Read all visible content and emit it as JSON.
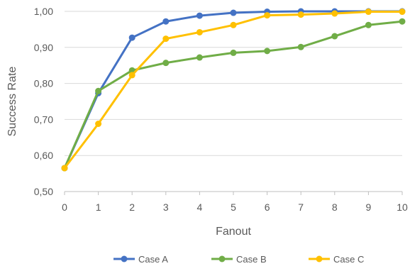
{
  "chart_data": {
    "type": "line",
    "title": "",
    "xlabel": "Fanout",
    "ylabel": "Success Rate",
    "x": [
      0,
      1,
      2,
      3,
      4,
      5,
      6,
      7,
      8,
      9,
      10
    ],
    "xlim": [
      0,
      10
    ],
    "ylim": [
      0.5,
      1.0
    ],
    "y_ticks": [
      "0,50",
      "0,60",
      "0,70",
      "0,80",
      "0,90",
      "1,00"
    ],
    "x_ticks": [
      "0",
      "1",
      "2",
      "3",
      "4",
      "5",
      "6",
      "7",
      "8",
      "9",
      "10"
    ],
    "grid": "horizontal",
    "legend": "bottom",
    "series": [
      {
        "name": "Case A",
        "color": "#4472C4",
        "values": [
          0.565,
          0.773,
          0.927,
          0.972,
          0.988,
          0.996,
          0.999,
          1.0,
          1.0,
          1.0,
          1.0
        ]
      },
      {
        "name": "Case B",
        "color": "#70AD47",
        "values": [
          0.565,
          0.779,
          0.836,
          0.857,
          0.872,
          0.885,
          0.89,
          0.901,
          0.931,
          0.962,
          0.972
        ]
      },
      {
        "name": "Case C",
        "color": "#FFC000",
        "values": [
          0.565,
          0.688,
          0.823,
          0.924,
          0.942,
          0.962,
          0.989,
          0.991,
          0.994,
          0.999,
          0.999
        ]
      }
    ]
  }
}
